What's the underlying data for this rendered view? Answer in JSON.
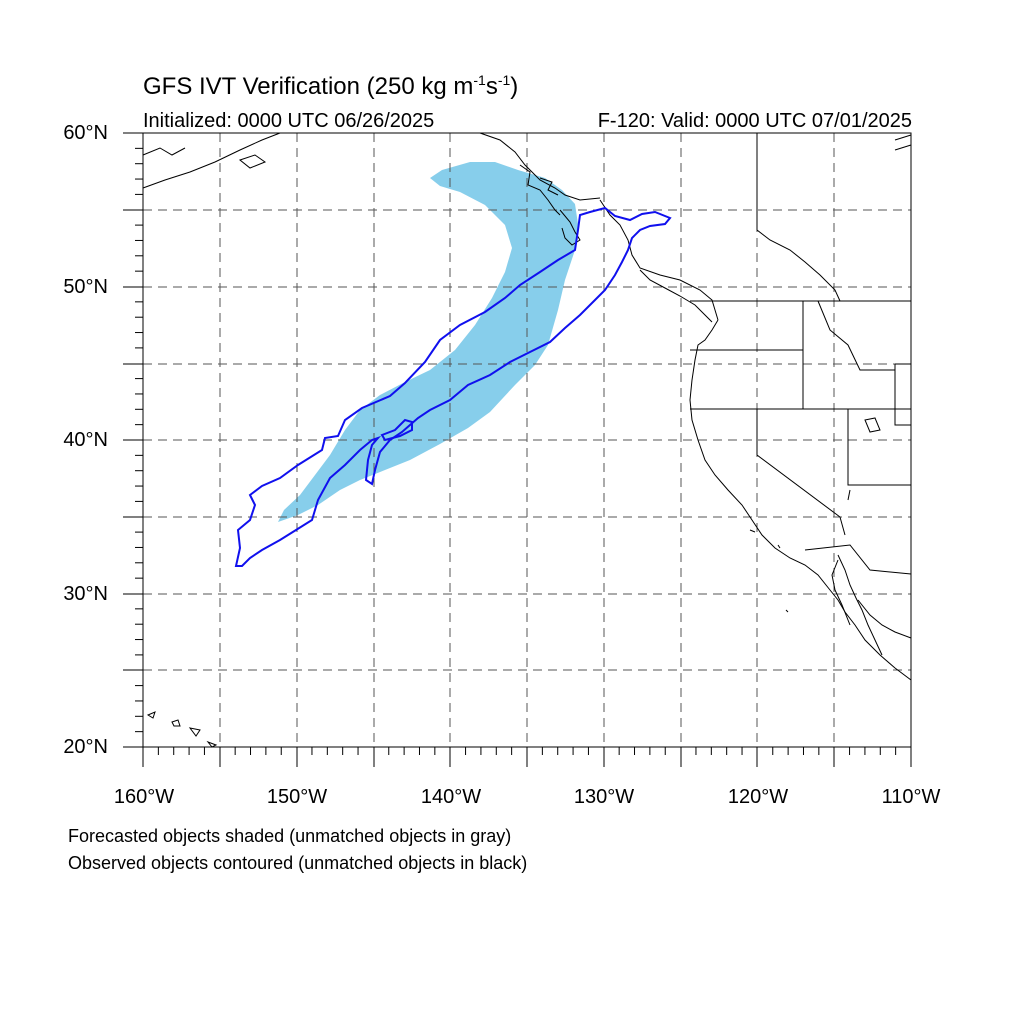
{
  "title": {
    "main": "GFS IVT Verification (250 kg m",
    "exp1": "-1",
    "mid": "s",
    "exp2": "-1",
    "end": ")"
  },
  "initialized": "Initialized: 0000 UTC 06/26/2025",
  "valid": "F-120: Valid: 0000 UTC 07/01/2025",
  "map": {
    "lon_range": [
      -160,
      -110
    ],
    "lat_range": [
      20,
      60
    ],
    "lat_labels": [
      "60°N",
      "50°N",
      "40°N",
      "30°N",
      "20°N"
    ],
    "lon_labels": [
      "160°W",
      "150°W",
      "140°W",
      "130°W",
      "120°W",
      "110°W"
    ],
    "gridlines": "dashed every 5°",
    "forecast_color": "#87ceeb",
    "observed_color": "#0000ff"
  },
  "footnotes": {
    "line1": "Forecasted objects shaded (unmatched objects in gray)",
    "line2": "Observed objects contoured (unmatched objects in black)"
  }
}
